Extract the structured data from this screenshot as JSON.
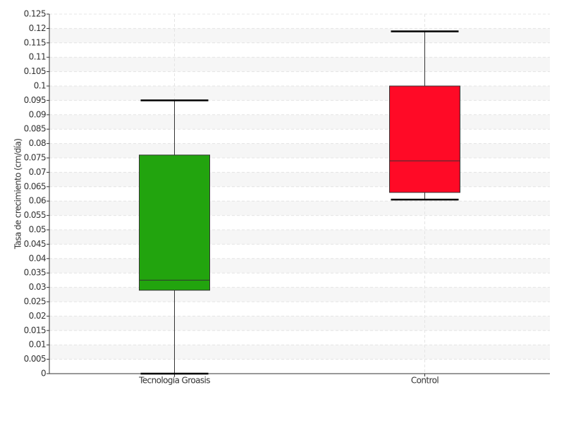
{
  "chart_data": {
    "type": "box",
    "y_label": "Tasa de crecimiento (cm/día)",
    "categories": [
      "Tecnología Groasis",
      "Control"
    ],
    "boxes": [
      {
        "low": 0,
        "q1": 0.029,
        "median": 0.0325,
        "q3": 0.076,
        "high": 0.095,
        "color": "#22a40e"
      },
      {
        "low": 0.0605,
        "q1": 0.063,
        "median": 0.074,
        "q3": 0.1,
        "high": 0.119,
        "color": "#ff0a26"
      }
    ],
    "ylim": [
      0,
      0.125
    ],
    "yticks": [
      0,
      0.005,
      0.01,
      0.015,
      0.02,
      0.025,
      0.03,
      0.035,
      0.04,
      0.045,
      0.05,
      0.055,
      0.06,
      0.065,
      0.07,
      0.075,
      0.08,
      0.085,
      0.09,
      0.095,
      0.1,
      0.105,
      0.11,
      0.115,
      0.12,
      0.125
    ],
    "grid": true
  }
}
